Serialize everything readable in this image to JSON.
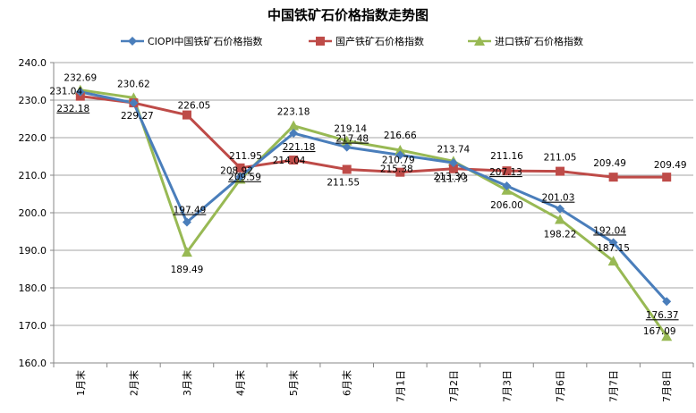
{
  "chart_data": {
    "type": "line",
    "title": "中国铁矿石价格指数走势图",
    "categories": [
      "1月末",
      "2月末",
      "3月末",
      "4月末",
      "5月末",
      "6月末",
      "7月1日",
      "7月2日",
      "7月3日",
      "7月6日",
      "7月7日",
      "7月8日"
    ],
    "ylim": [
      160,
      240
    ],
    "yticks": [
      "160.0",
      "170.0",
      "180.0",
      "190.0",
      "200.0",
      "210.0",
      "220.0",
      "230.0",
      "240.0"
    ],
    "grid": true,
    "legend_position": "top",
    "series": [
      {
        "name": "CIOPI中国铁矿石价格指数",
        "color": "#4A7EBB",
        "marker": "diamond",
        "values": [
          232.18,
          229.27,
          197.49,
          209.59,
          221.18,
          217.48,
          215.38,
          213.3,
          207.13,
          201.03,
          192.04,
          176.37
        ],
        "labels": [
          "232.18",
          "229.27",
          "197.49",
          "209.59",
          "221.18",
          "217.48",
          "215.38",
          "213.30",
          "207.13",
          "201.03",
          "192.04",
          "176.37"
        ]
      },
      {
        "name": "国产铁矿石价格指数",
        "color": "#BE4B48",
        "marker": "square",
        "values": [
          231.04,
          229.27,
          226.05,
          211.95,
          214.04,
          211.55,
          210.79,
          211.73,
          211.16,
          211.05,
          209.49,
          209.49
        ],
        "labels": [
          "231.04",
          "",
          "226.05",
          "211.95",
          "214.04",
          "211.55",
          "210.79",
          "211.73",
          "211.16",
          "211.05",
          "209.49",
          "209.49"
        ]
      },
      {
        "name": "进口铁矿石价格指数",
        "color": "#98B954",
        "marker": "triangle",
        "values": [
          232.69,
          230.62,
          189.49,
          208.92,
          223.18,
          219.14,
          216.66,
          213.74,
          206.0,
          198.22,
          187.15,
          167.09
        ],
        "labels": [
          "232.69",
          "230.62",
          "189.49",
          "208.92",
          "223.18",
          "219.14",
          "216.66",
          "213.74",
          "206.00",
          "198.22",
          "187.15",
          "167.09"
        ]
      }
    ]
  }
}
